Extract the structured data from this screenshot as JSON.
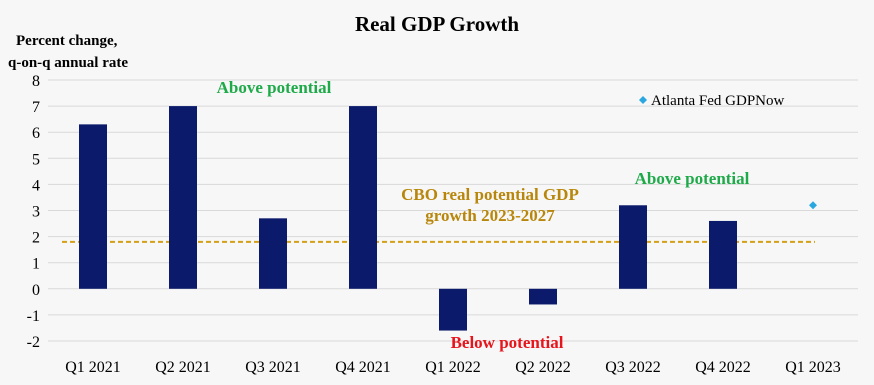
{
  "chart_data": {
    "type": "bar",
    "title": "Real GDP Growth",
    "ylabel_line1": "Percent change,",
    "ylabel_line2": "q-on-q annual rate",
    "xlabel": "",
    "ylim": [
      -2,
      8
    ],
    "yticks": [
      -2,
      -1,
      0,
      1,
      2,
      3,
      4,
      5,
      6,
      7,
      8
    ],
    "grid": true,
    "categories": [
      "Q1 2021",
      "Q2 2021",
      "Q3 2021",
      "Q4 2021",
      "Q1 2022",
      "Q2 2022",
      "Q3 2022",
      "Q4 2022",
      "Q1 2023"
    ],
    "series": [
      {
        "values": [
          6.3,
          7.0,
          2.7,
          7.0,
          -1.6,
          -0.6,
          3.2,
          2.6,
          null
        ],
        "color": "#0b1a6b"
      }
    ],
    "nowcast": {
      "name": "Atlanta Fed GDPNow",
      "category": "Q1 2023",
      "value": 3.2,
      "color": "#2aa7e0"
    },
    "reference_line": {
      "value": 1.8,
      "color": "#d4a017"
    },
    "annotations": {
      "above_potential_1": "Above potential",
      "above_potential_2": "Above potential",
      "below_potential": "Below potential",
      "cbo_line1": "CBO real potential GDP",
      "cbo_line2": "growth 2023-2027"
    },
    "legend_position": "top-right"
  }
}
